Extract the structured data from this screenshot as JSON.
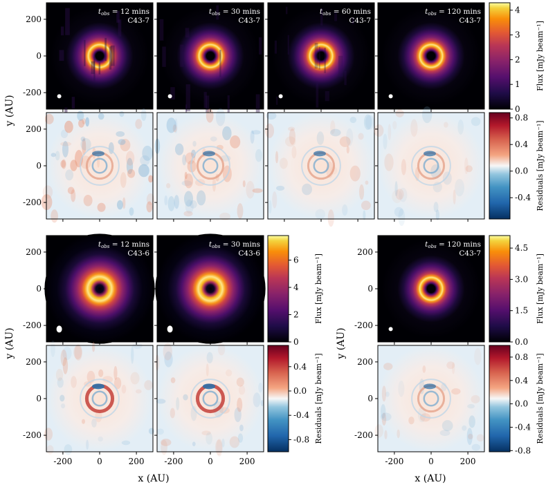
{
  "figure": {
    "axis_unit": "AU",
    "xlabel": "x (AU)",
    "ylabel": "y (AU)",
    "ticks": [
      -200,
      0,
      200
    ],
    "flux_colorbar_label": "Flux [mJy beam⁻¹]",
    "residual_colorbar_label": "Residuals [mJy beam⁻¹]",
    "flux_colormap": "inferno",
    "residual_colormap": "RdBu_r"
  },
  "chart_data": [
    {
      "type": "heatmap",
      "group": "top",
      "row": "flux",
      "xlim": [
        -290,
        290
      ],
      "ylim": [
        -290,
        290
      ],
      "colorbar": {
        "min": 0,
        "max": 4.3,
        "ticks": [
          0,
          1,
          2,
          3,
          4
        ]
      },
      "panels": [
        {
          "t_obs": "12",
          "config": "C43-7"
        },
        {
          "t_obs": "30",
          "config": "C43-7"
        },
        {
          "t_obs": "60",
          "config": "C43-7"
        },
        {
          "t_obs": "120",
          "config": "C43-7"
        }
      ]
    },
    {
      "type": "heatmap",
      "group": "top",
      "row": "residuals",
      "xlim": [
        -290,
        290
      ],
      "ylim": [
        -290,
        290
      ],
      "colorbar": {
        "min": -0.72,
        "max": 0.88,
        "ticks": [
          -0.4,
          0.0,
          0.4,
          0.8
        ],
        "tick_labels": [
          "-0.4",
          "0.0",
          "0.4",
          "0.8"
        ]
      }
    },
    {
      "type": "heatmap",
      "group": "bottom-left",
      "row": "flux",
      "xlim": [
        -290,
        290
      ],
      "ylim": [
        -290,
        290
      ],
      "colorbar": {
        "min": 0,
        "max": 7.8,
        "ticks": [
          0,
          2,
          4,
          6
        ]
      },
      "panels": [
        {
          "t_obs": "12",
          "config": "C43-6"
        },
        {
          "t_obs": "30",
          "config": "C43-6"
        }
      ]
    },
    {
      "type": "heatmap",
      "group": "bottom-left",
      "row": "residuals",
      "xlim": [
        -290,
        290
      ],
      "ylim": [
        -290,
        290
      ],
      "colorbar": {
        "min": -1.0,
        "max": 0.75,
        "ticks": [
          -0.8,
          -0.4,
          0.0,
          0.4
        ],
        "tick_labels": [
          "-0.8",
          "-0.4",
          "0.0",
          "0.4"
        ]
      }
    },
    {
      "type": "heatmap",
      "group": "bottom-right",
      "row": "flux",
      "xlim": [
        -290,
        290
      ],
      "ylim": [
        -290,
        290
      ],
      "colorbar": {
        "min": 0,
        "max": 5.1,
        "ticks": [
          0,
          1.5,
          3.0,
          4.5
        ],
        "tick_labels": [
          "0.0",
          "1.5",
          "3.0",
          "4.5"
        ]
      },
      "panels": [
        {
          "t_obs": "120",
          "config": "C43-7"
        }
      ]
    },
    {
      "type": "heatmap",
      "group": "bottom-right",
      "row": "residuals",
      "xlim": [
        -290,
        290
      ],
      "ylim": [
        -290,
        290
      ],
      "colorbar": {
        "min": -0.82,
        "max": 1.0,
        "ticks": [
          -0.8,
          -0.4,
          0.0,
          0.4,
          0.8
        ],
        "tick_labels": [
          "-0.8",
          "-0.4",
          "0.0",
          "0.4",
          "0.8"
        ]
      }
    }
  ]
}
